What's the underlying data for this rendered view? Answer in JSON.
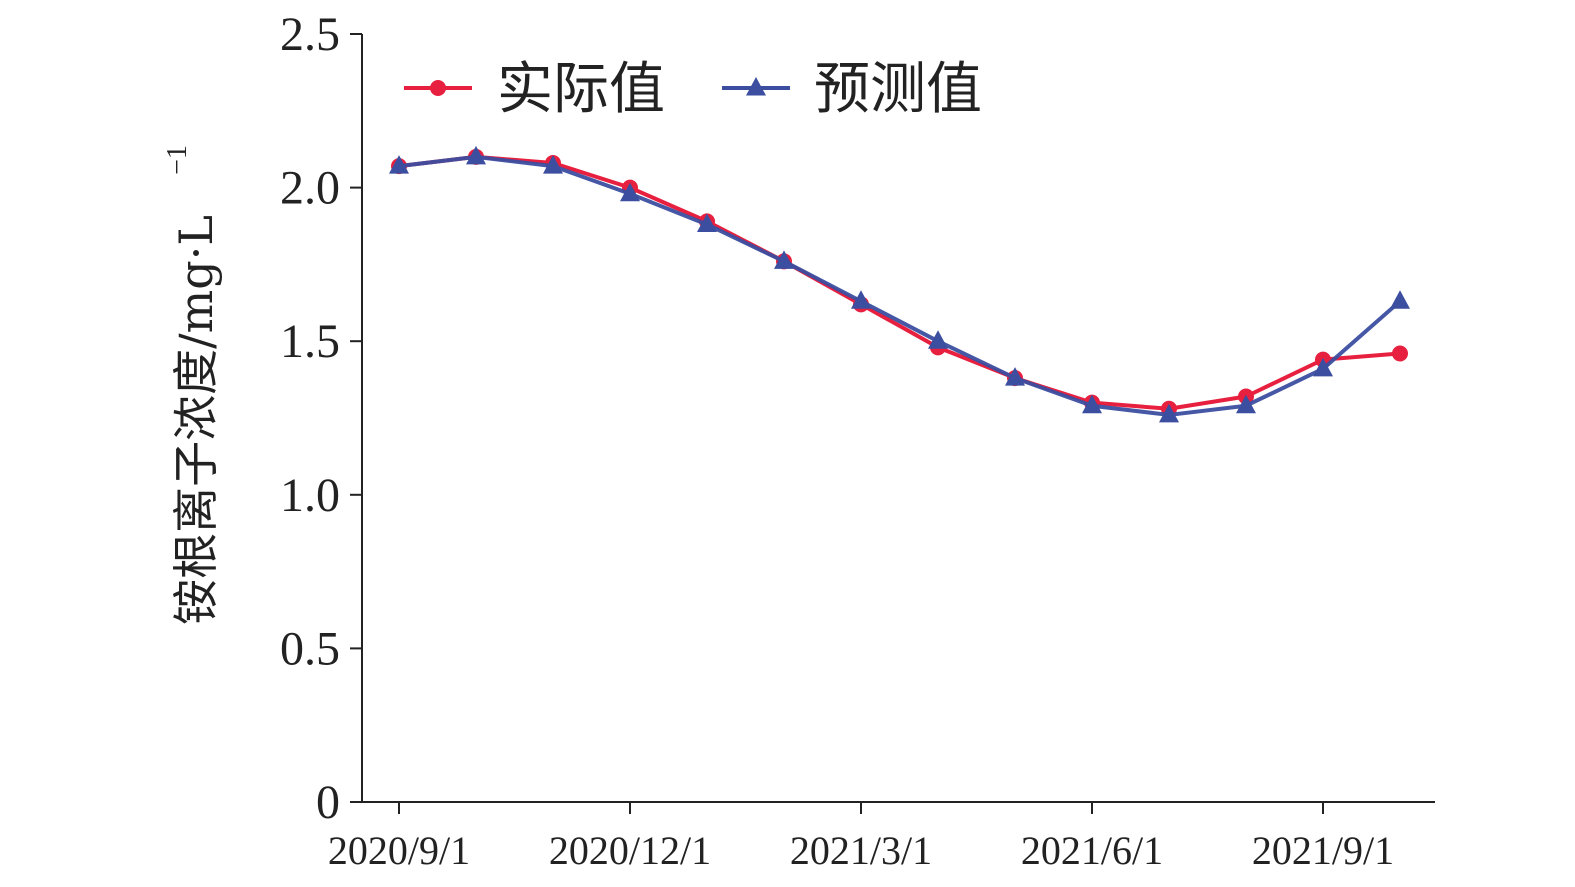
{
  "chart_data": {
    "type": "line",
    "title": "",
    "ylabel": "铵根离子浓度/mg·L",
    "ylabel_superscript": "−1",
    "ylim": [
      0,
      2.5
    ],
    "y_ticks": [
      0,
      0.5,
      1.0,
      1.5,
      2.0,
      2.5
    ],
    "y_tick_labels": [
      "0",
      "0.5",
      "1.0",
      "1.5",
      "2.0",
      "2.5"
    ],
    "x": [
      "2020/9/1",
      "2020/10/1",
      "2020/11/1",
      "2020/12/1",
      "2021/1/1",
      "2021/2/1",
      "2021/3/1",
      "2021/4/1",
      "2021/5/1",
      "2021/6/1",
      "2021/7/1",
      "2021/8/1",
      "2021/9/1",
      "2021/10/1"
    ],
    "x_tick_labels": [
      "2020/9/1",
      "2020/12/1",
      "2021/3/1",
      "2021/6/1",
      "2021/9/1"
    ],
    "x_tick_positions": [
      0,
      3,
      6,
      9,
      12
    ],
    "grid": false,
    "legend": "top-left",
    "series": [
      {
        "name": "实际值",
        "color": "#e8203f",
        "marker": "circle",
        "values": [
          2.07,
          2.1,
          2.08,
          2.0,
          1.89,
          1.76,
          1.62,
          1.48,
          1.38,
          1.3,
          1.28,
          1.32,
          1.44,
          1.46
        ]
      },
      {
        "name": "预测值",
        "color": "#3b4ea0",
        "marker": "triangle",
        "values": [
          2.07,
          2.1,
          2.07,
          1.98,
          1.88,
          1.76,
          1.63,
          1.5,
          1.38,
          1.29,
          1.26,
          1.29,
          1.41,
          1.63
        ]
      }
    ]
  }
}
